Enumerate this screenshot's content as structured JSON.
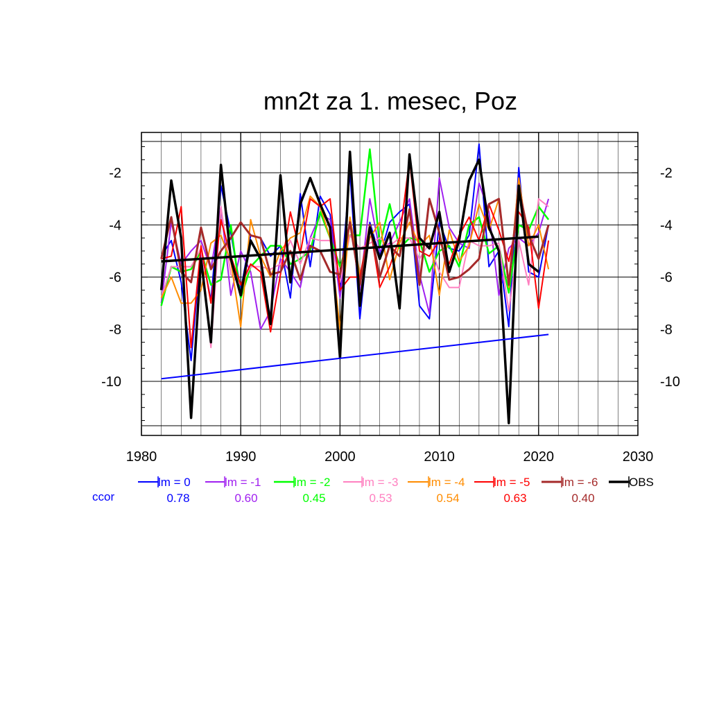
{
  "chart_data": {
    "type": "line",
    "title": "mn2t za 1. mesec, Poz",
    "xlim": [
      1980,
      2030
    ],
    "ylim": [
      -11.7,
      -0.8
    ],
    "x_ticks": [
      1980,
      1990,
      2000,
      2010,
      2020,
      2030
    ],
    "y_ticks": [
      -2,
      -4,
      -6,
      -8,
      -10
    ],
    "x_tick_labels": [
      "1980",
      "1990",
      "2000",
      "2010",
      "2020",
      "2030"
    ],
    "y_tick_labels": [
      "-2",
      "-4",
      "-6",
      "-8",
      "-10"
    ],
    "grid": true,
    "ccor_label": "ccor",
    "ccor_color": "#0000ff",
    "x": [
      1982,
      1983,
      1984,
      1985,
      1986,
      1987,
      1988,
      1989,
      1990,
      1991,
      1992,
      1993,
      1994,
      1995,
      1996,
      1997,
      1998,
      1999,
      2000,
      2001,
      2002,
      2003,
      2004,
      2005,
      2006,
      2007,
      2008,
      2009,
      2010,
      2011,
      2012,
      2013,
      2014,
      2015,
      2016,
      2017,
      2018,
      2019,
      2020,
      2021
    ],
    "series": [
      {
        "name": "lm = 0",
        "color": "#0000ff",
        "width": 2,
        "ccor": "0.78",
        "values": [
          -5.2,
          -4.6,
          -6.2,
          -9.2,
          -4.9,
          -6.9,
          -2.5,
          -4.3,
          -6.5,
          -4.4,
          -4.5,
          -5.2,
          -4.8,
          -6.8,
          -2.8,
          -5.6,
          -2.9,
          -3.6,
          -6.5,
          -2.0,
          -7.6,
          -3.9,
          -5.2,
          -3.9,
          -3.5,
          -3.2,
          -7.1,
          -7.6,
          -3.9,
          -4.9,
          -5.0,
          -4.4,
          -0.9,
          -5.6,
          -5.0,
          -7.9,
          -1.8,
          -5.8,
          -6.0,
          -4.0
        ]
      },
      {
        "name": "lm = -1",
        "color": "#a020f0",
        "width": 2,
        "ccor": "0.60",
        "values": [
          -7.0,
          -3.9,
          -5.5,
          -5.0,
          -4.6,
          -5.7,
          -3.3,
          -6.7,
          -5.0,
          -5.8,
          -8.0,
          -7.3,
          -5.3,
          -5.8,
          -6.4,
          -4.5,
          -3.6,
          -3.8,
          -6.8,
          -3.8,
          -6.5,
          -3.0,
          -5.0,
          -4.7,
          -3.9,
          -3.0,
          -5.9,
          -7.4,
          -2.2,
          -4.1,
          -4.7,
          -4.9,
          -2.4,
          -3.5,
          -6.7,
          -4.9,
          -4.5,
          -4.8,
          -4.3,
          -3.0
        ]
      },
      {
        "name": "lm = -2",
        "color": "#00ff00",
        "width": 2.5,
        "ccor": "0.45",
        "values": [
          -7.1,
          -5.6,
          -5.8,
          -5.7,
          -5.0,
          -6.3,
          -6.1,
          -4.0,
          -6.8,
          -5.6,
          -5.2,
          -4.8,
          -4.8,
          -5.5,
          -5.3,
          -5.0,
          -3.5,
          -4.5,
          -5.6,
          -4.4,
          -4.4,
          -1.1,
          -4.8,
          -3.2,
          -4.9,
          -4.5,
          -4.6,
          -5.8,
          -5.0,
          -4.8,
          -5.6,
          -4.0,
          -3.7,
          -5.1,
          -4.8,
          -6.6,
          -4.0,
          -4.2,
          -3.3,
          -3.8
        ]
      },
      {
        "name": "lm = -3",
        "color": "#ff80c0",
        "width": 2,
        "ccor": "0.53",
        "values": [
          -6.8,
          -5.6,
          -5.6,
          -5.6,
          -4.9,
          -8.7,
          -3.3,
          -5.9,
          -6.3,
          -5.6,
          -5.6,
          -5.7,
          -5.5,
          -4.6,
          -5.5,
          -4.5,
          -4.6,
          -4.6,
          -6.2,
          -4.4,
          -4.9,
          -4.7,
          -4.5,
          -4.8,
          -4.5,
          -4.5,
          -5.3,
          -4.7,
          -5.8,
          -6.4,
          -6.4,
          -4.6,
          -4.8,
          -4.8,
          -4.7,
          -7.3,
          -4.6,
          -6.3,
          -3.0,
          -3.3
        ]
      },
      {
        "name": "lm = -4",
        "color": "#ff8c00",
        "width": 2,
        "ccor": "0.54",
        "values": [
          -6.8,
          -6.0,
          -7.0,
          -7.0,
          -6.5,
          -4.7,
          -4.4,
          -5.4,
          -7.9,
          -3.8,
          -5.2,
          -6.0,
          -5.0,
          -4.5,
          -4.3,
          -2.9,
          -3.3,
          -4.5,
          -8.0,
          -3.7,
          -5.9,
          -4.5,
          -3.9,
          -6.1,
          -4.7,
          -3.9,
          -4.8,
          -4.4,
          -6.7,
          -4.2,
          -5.4,
          -4.8,
          -3.2,
          -4.2,
          -3.0,
          -6.4,
          -2.2,
          -4.8,
          -4.0,
          -5.7
        ]
      },
      {
        "name": "lm = -5",
        "color": "#ff0000",
        "width": 2,
        "ccor": "0.63",
        "values": [
          -5.3,
          -5.2,
          -3.3,
          -8.7,
          -4.8,
          -7.0,
          -3.8,
          -5.2,
          -6.3,
          -5.5,
          -5.8,
          -8.1,
          -5.9,
          -3.5,
          -5.1,
          -3.0,
          -3.3,
          -3.0,
          -6.5,
          -6.0,
          -6.0,
          -4.0,
          -6.4,
          -5.6,
          -4.5,
          -1.5,
          -5.0,
          -5.2,
          -4.6,
          -5.5,
          -4.4,
          -3.7,
          -4.6,
          -3.2,
          -4.2,
          -5.4,
          -3.5,
          -4.1,
          -7.2,
          -4.6
        ]
      },
      {
        "name": "lm = -6",
        "color": "#a52a2a",
        "width": 3,
        "ccor": "0.40",
        "values": [
          -5.3,
          -3.7,
          -5.8,
          -6.2,
          -4.1,
          -5.7,
          -5.0,
          -4.5,
          -3.9,
          -4.4,
          -4.5,
          -5.9,
          -5.8,
          -5.0,
          -6.1,
          -4.8,
          -5.0,
          -5.8,
          -5.9,
          -3.9,
          -6.3,
          -4.0,
          -6.0,
          -4.8,
          -5.2,
          -3.4,
          -6.3,
          -3.0,
          -4.3,
          -6.1,
          -6.0,
          -5.7,
          -5.3,
          -3.2,
          -3.0,
          -6.3,
          -2.6,
          -4.4,
          -5.3,
          -4.0
        ]
      },
      {
        "name": "OBS",
        "color": "#000000",
        "width": 3.5,
        "ccor": "",
        "values": [
          -6.5,
          -2.3,
          -4.5,
          -11.4,
          -5.3,
          -8.5,
          -1.7,
          -5.3,
          -6.7,
          -4.6,
          -5.3,
          -7.8,
          -2.1,
          -6.2,
          -3.2,
          -2.2,
          -3.2,
          -4.1,
          -9.1,
          -1.2,
          -7.1,
          -4.1,
          -5.3,
          -4.3,
          -7.2,
          -1.3,
          -4.5,
          -4.9,
          -3.5,
          -5.8,
          -4.6,
          -2.3,
          -1.5,
          -4.1,
          -5.0,
          -11.6,
          -2.5,
          -5.5,
          -5.8,
          null
        ]
      }
    ],
    "trend_lines": [
      {
        "name": "lm = 0 trend",
        "color": "#0000ff",
        "width": 2,
        "x": [
          1982,
          2021
        ],
        "values": [
          -9.9,
          -8.2
        ]
      },
      {
        "name": "OBS trend",
        "color": "#000000",
        "width": 3.5,
        "x": [
          1982,
          2020
        ],
        "values": [
          -5.4,
          -4.45
        ]
      }
    ]
  }
}
